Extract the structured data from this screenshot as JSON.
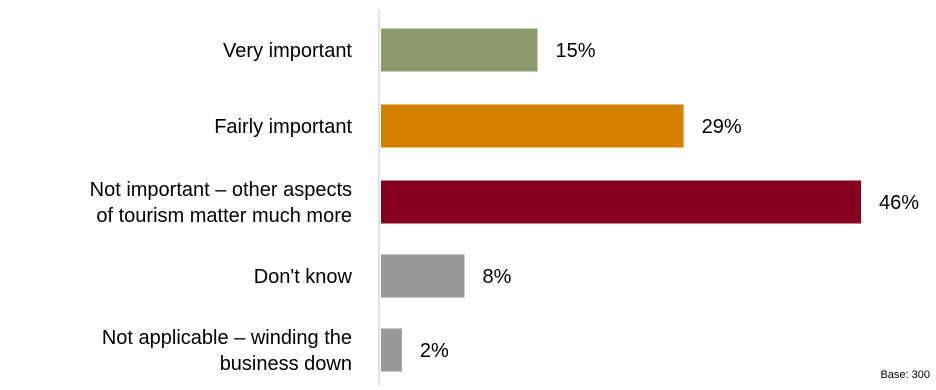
{
  "chart_data": {
    "type": "bar",
    "orientation": "horizontal",
    "categories": [
      [
        "Very important"
      ],
      [
        "Fairly important"
      ],
      [
        "Not important – other aspects",
        "of tourism matter much more"
      ],
      [
        "Don't know"
      ],
      [
        "Not applicable – winding the",
        "business down"
      ]
    ],
    "values": [
      15,
      29,
      46,
      8,
      2
    ],
    "data_labels": [
      "15%",
      "29%",
      "46%",
      "8%",
      "2%"
    ],
    "colors": [
      "#8a9a6c",
      "#d68000",
      "#85001f",
      "#999999",
      "#999999"
    ],
    "xlim": [
      0,
      46
    ],
    "grid": false,
    "legend": "none"
  },
  "footnote": "Base: 300"
}
